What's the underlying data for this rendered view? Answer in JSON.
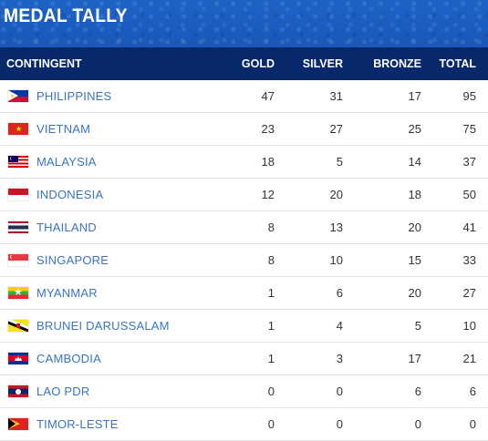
{
  "header": {
    "title": "MEDAL TALLY"
  },
  "table": {
    "columns": [
      "CONTINGENT",
      "GOLD",
      "SILVER",
      "BRONZE",
      "TOTAL"
    ],
    "rows": [
      {
        "contingent": "PHILIPPINES",
        "flag": "philippines-flag-icon",
        "gold": "47",
        "silver": "31",
        "bronze": "17",
        "total": "95"
      },
      {
        "contingent": "VIETNAM",
        "flag": "vietnam-flag-icon",
        "gold": "23",
        "silver": "27",
        "bronze": "25",
        "total": "75"
      },
      {
        "contingent": "MALAYSIA",
        "flag": "malaysia-flag-icon",
        "gold": "18",
        "silver": "5",
        "bronze": "14",
        "total": "37"
      },
      {
        "contingent": "INDONESIA",
        "flag": "indonesia-flag-icon",
        "gold": "12",
        "silver": "20",
        "bronze": "18",
        "total": "50"
      },
      {
        "contingent": "THAILAND",
        "flag": "thailand-flag-icon",
        "gold": "8",
        "silver": "13",
        "bronze": "20",
        "total": "41"
      },
      {
        "contingent": "SINGAPORE",
        "flag": "singapore-flag-icon",
        "gold": "8",
        "silver": "10",
        "bronze": "15",
        "total": "33"
      },
      {
        "contingent": "MYANMAR",
        "flag": "myanmar-flag-icon",
        "gold": "1",
        "silver": "6",
        "bronze": "20",
        "total": "27"
      },
      {
        "contingent": "BRUNEI DARUSSALAM",
        "flag": "brunei-flag-icon",
        "gold": "1",
        "silver": "4",
        "bronze": "5",
        "total": "10"
      },
      {
        "contingent": "CAMBODIA",
        "flag": "cambodia-flag-icon",
        "gold": "1",
        "silver": "3",
        "bronze": "17",
        "total": "21"
      },
      {
        "contingent": "LAO PDR",
        "flag": "laos-flag-icon",
        "gold": "0",
        "silver": "0",
        "bronze": "6",
        "total": "6"
      },
      {
        "contingent": "TIMOR-LESTE",
        "flag": "timor-leste-flag-icon",
        "gold": "0",
        "silver": "0",
        "bronze": "0",
        "total": "0"
      }
    ]
  },
  "colors": {
    "banner": "#1a5dc0",
    "header_row": "#07286a",
    "country_link": "#3a74c5"
  }
}
